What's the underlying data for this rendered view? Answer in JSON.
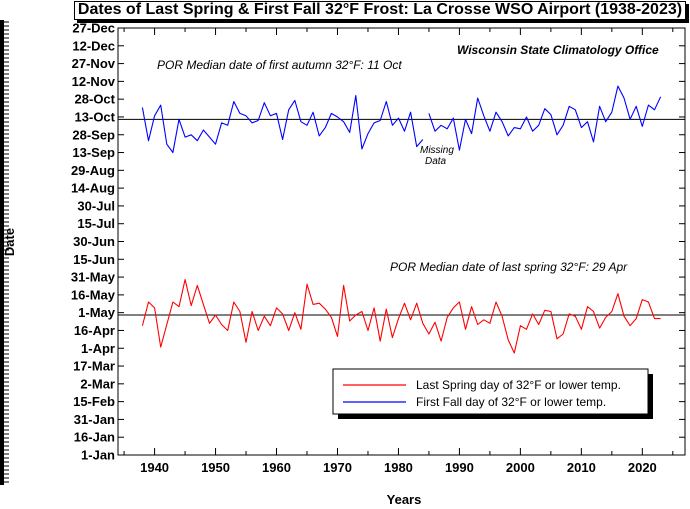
{
  "chart_data": {
    "type": "line",
    "title": "Dates of  Last Spring & First Fall 32°F Frost: La Crosse WSO Airport (1938-2023)",
    "xlabel": "Years",
    "ylabel": "Date",
    "x_ticks": [
      1940,
      1950,
      1960,
      1970,
      1980,
      1990,
      2000,
      2010,
      2020
    ],
    "xlim": [
      1934,
      2027
    ],
    "y_ticks": [
      {
        "doy": 1,
        "label": "1-Jan"
      },
      {
        "doy": 16,
        "label": "16-Jan"
      },
      {
        "doy": 31,
        "label": "31-Jan"
      },
      {
        "doy": 46,
        "label": "15-Feb"
      },
      {
        "doy": 61,
        "label": "2-Mar"
      },
      {
        "doy": 76,
        "label": "17-Mar"
      },
      {
        "doy": 91,
        "label": "1-Apr"
      },
      {
        "doy": 106,
        "label": "16-Apr"
      },
      {
        "doy": 121,
        "label": "1-May"
      },
      {
        "doy": 136,
        "label": "16-May"
      },
      {
        "doy": 151,
        "label": "31-May"
      },
      {
        "doy": 166,
        "label": "15-Jun"
      },
      {
        "doy": 181,
        "label": "30-Jun"
      },
      {
        "doy": 196,
        "label": "15-Jul"
      },
      {
        "doy": 211,
        "label": "30-Jul"
      },
      {
        "doy": 226,
        "label": "14-Aug"
      },
      {
        "doy": 241,
        "label": "29-Aug"
      },
      {
        "doy": 256,
        "label": "13-Sep"
      },
      {
        "doy": 271,
        "label": "28-Sep"
      },
      {
        "doy": 286,
        "label": "13-Oct"
      },
      {
        "doy": 301,
        "label": "28-Oct"
      },
      {
        "doy": 316,
        "label": "12-Nov"
      },
      {
        "doy": 331,
        "label": "27-Nov"
      },
      {
        "doy": 346,
        "label": "12-Dec"
      },
      {
        "doy": 361,
        "label": "27-Dec"
      }
    ],
    "ylim": [
      1,
      361
    ],
    "grid": false,
    "legend_position": "bottom-right",
    "series": [
      {
        "name": "Last Spring day of 32°F or lower temp.",
        "color": "#ff0000",
        "segments": [
          {
            "x": [
              1938,
              1939,
              1940,
              1941,
              1942,
              1943,
              1944,
              1945,
              1946,
              1947,
              1948,
              1949,
              1950,
              1951,
              1952,
              1953,
              1954,
              1955,
              1956,
              1957,
              1958,
              1959,
              1960,
              1961,
              1962,
              1963,
              1964,
              1965,
              1966,
              1967,
              1968,
              1969,
              1970,
              1971,
              1972,
              1973,
              1974,
              1975,
              1976,
              1977,
              1978,
              1979,
              1980,
              1981,
              1982,
              1983,
              1984,
              1985,
              1986,
              1987,
              1988,
              1989,
              1990,
              1991,
              1992,
              1993,
              1994,
              1995,
              1996,
              1997,
              1998,
              1999,
              2000,
              2001,
              2002,
              2003,
              2004,
              2005,
              2006,
              2007,
              2008,
              2009,
              2010,
              2011,
              2012,
              2013,
              2014,
              2015,
              2016,
              2017,
              2018,
              2019,
              2020,
              2021,
              2022,
              2023
            ],
            "y": [
              110,
              130,
              125,
              92,
              111,
              130,
              126,
              149,
              127,
              144,
              128,
              112,
              119,
              111,
              106,
              130,
              122,
              96,
              122,
              106,
              118,
              110,
              125,
              120,
              106,
              121,
              107,
              145,
              128,
              129,
              124,
              117,
              101,
              144,
              114,
              119,
              122,
              106,
              125,
              97,
              124,
              100,
              116,
              129,
              115,
              129,
              112,
              103,
              113,
              97,
              117,
              125,
              130,
              107,
              126,
              111,
              115,
              112,
              130,
              118,
              98,
              87,
              110,
              107,
              120,
              111,
              123,
              122,
              99,
              103,
              120,
              118,
              107,
              126,
              122,
              108,
              117,
              122,
              137,
              118,
              110,
              116,
              132,
              130,
              116,
              116
            ]
          }
        ]
      },
      {
        "name": "First Fall day of 32°F or lower temp.",
        "color": "#0000ff",
        "segments": [
          {
            "x": [
              1938,
              1939,
              1940,
              1941,
              1942,
              1943,
              1944,
              1945,
              1946,
              1947,
              1948,
              1949,
              1950,
              1951,
              1952,
              1953,
              1954,
              1955,
              1956,
              1957,
              1958,
              1959,
              1960,
              1961,
              1962,
              1963,
              1964,
              1965,
              1966,
              1967,
              1968,
              1969,
              1970,
              1971,
              1972,
              1973,
              1974,
              1975,
              1976,
              1977,
              1978,
              1979,
              1980,
              1981,
              1982,
              1983,
              1984
            ],
            "y": [
              294,
              266,
              287,
              296,
              263,
              256,
              284,
              269,
              271,
              266,
              275,
              269,
              263,
              281,
              279,
              299,
              289,
              287,
              281,
              283,
              298,
              287,
              289,
              267,
              292,
              300,
              282,
              279,
              290,
              270,
              277,
              289,
              286,
              282,
              273,
              304,
              259,
              272,
              281,
              283,
              299,
              279,
              285,
              274,
              290,
              261,
              267
            ]
          },
          {
            "x": [
              1985,
              1986,
              1987,
              1988,
              1989,
              1990,
              1991,
              1992,
              1993,
              1994,
              1995,
              1996,
              1997,
              1998,
              1999,
              2000,
              2001,
              2002,
              2003,
              2004,
              2005,
              2006,
              2007,
              2008,
              2009,
              2010,
              2011,
              2012,
              2013,
              2014,
              2015,
              2016,
              2017,
              2018,
              2019,
              2020,
              2021,
              2022,
              2023
            ],
            "y": [
              289,
              274,
              279,
              276,
              285,
              258,
              284,
              272,
              302,
              287,
              274,
              290,
              282,
              270,
              277,
              276,
              286,
              274,
              279,
              293,
              288,
              271,
              279,
              295,
              292,
              277,
              282,
              265,
              295,
              282,
              290,
              312,
              302,
              284,
              295,
              278,
              296,
              292,
              303
            ]
          }
        ]
      }
    ],
    "median_lines": [
      {
        "doy": 284,
        "label": "POR Median date of first autumn 32°F: 11 Oct"
      },
      {
        "doy": 119,
        "label": "POR Median date of last spring 32°F: 29 Apr"
      }
    ],
    "annotations": {
      "source": "Wisconsin State Climatology Office",
      "missing_line1": "Missing",
      "missing_line2": "Data"
    }
  }
}
